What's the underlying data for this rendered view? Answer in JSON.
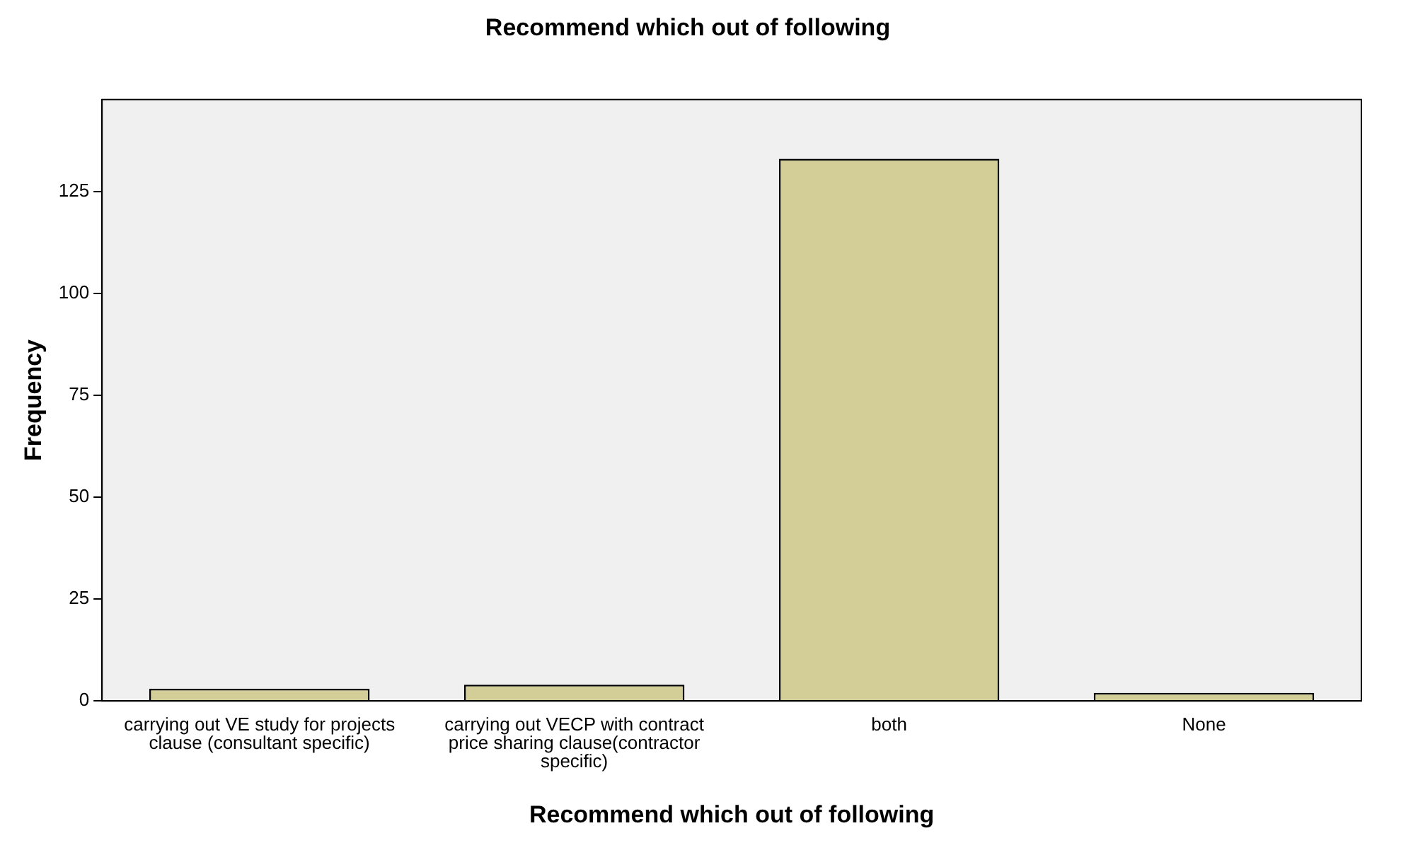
{
  "chart_data": {
    "type": "bar",
    "title": "Recommend which out of following",
    "xlabel": "Recommend which out of following",
    "ylabel": "Frequency",
    "categories": [
      "carrying out VE study for projects clause (consultant specific)",
      "carrying out VECP with contract price sharing clause(contractor specific)",
      "both",
      "None"
    ],
    "values": [
      3,
      4,
      133,
      2
    ],
    "color": "#d3ce97",
    "ylim": [
      0,
      147.5
    ],
    "yticks": [
      0,
      25,
      50,
      75,
      100,
      125
    ],
    "grid": false,
    "legend": false
  }
}
